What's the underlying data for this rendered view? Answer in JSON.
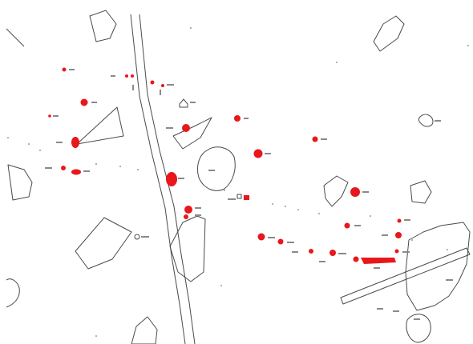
{
  "map": {
    "type": "archaeological-site-plan",
    "background_color": "#ffffff",
    "feature_color": "#e8171c",
    "outline_color": "#4a4a4a",
    "red_features": 31,
    "outlined_features": 16,
    "linear_features": [
      "road-north-south",
      "road-diagonal-southeast"
    ]
  }
}
